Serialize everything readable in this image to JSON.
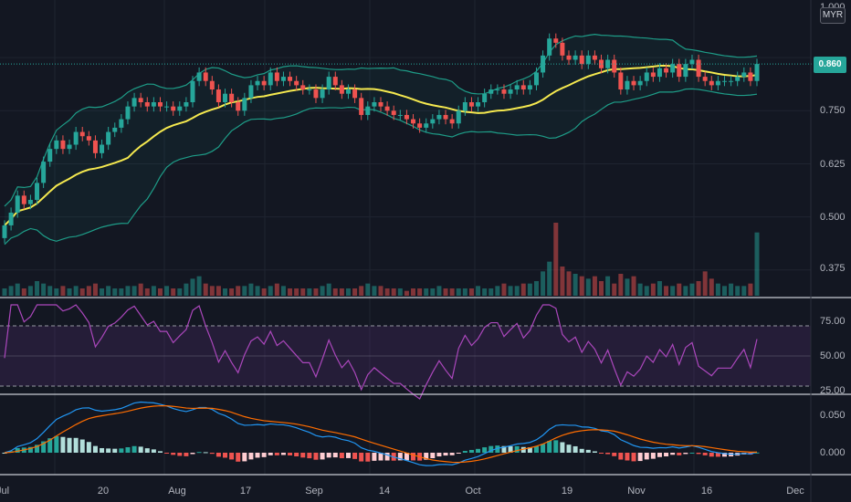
{
  "currency": "MYR",
  "last_price": "0.860",
  "colors": {
    "background": "#131722",
    "grid": "#1f2430",
    "up": "#26a69a",
    "down": "#ef5350",
    "basis": "#f5e94f",
    "bands": "#1e9d88",
    "rsi": "#ab47bc",
    "macd": "#2196f3",
    "signal": "#ff6d00"
  },
  "chart_data": [
    {
      "type": "candlestick",
      "overlays": [
        "bollinger-bands",
        "volume"
      ],
      "y_ticks": [
        "1.000",
        "0.860",
        "0.750",
        "0.625",
        "0.500",
        "0.375"
      ],
      "ylim": [
        0.31,
        1.0
      ],
      "x_ticks": [
        "Jul",
        "20",
        "Aug",
        "17",
        "Sep",
        "14",
        "Oct",
        "19",
        "Nov",
        "16",
        "Dec"
      ],
      "close": [
        0.48,
        0.51,
        0.55,
        0.53,
        0.54,
        0.58,
        0.63,
        0.66,
        0.68,
        0.66,
        0.67,
        0.7,
        0.69,
        0.68,
        0.65,
        0.67,
        0.7,
        0.71,
        0.73,
        0.76,
        0.78,
        0.77,
        0.76,
        0.77,
        0.76,
        0.76,
        0.75,
        0.76,
        0.77,
        0.82,
        0.84,
        0.82,
        0.8,
        0.77,
        0.79,
        0.77,
        0.75,
        0.78,
        0.81,
        0.82,
        0.81,
        0.84,
        0.82,
        0.83,
        0.82,
        0.81,
        0.8,
        0.8,
        0.78,
        0.8,
        0.83,
        0.81,
        0.79,
        0.8,
        0.78,
        0.74,
        0.76,
        0.77,
        0.76,
        0.75,
        0.74,
        0.74,
        0.73,
        0.72,
        0.71,
        0.72,
        0.73,
        0.74,
        0.73,
        0.72,
        0.75,
        0.77,
        0.76,
        0.77,
        0.79,
        0.8,
        0.8,
        0.79,
        0.8,
        0.81,
        0.8,
        0.81,
        0.84,
        0.88,
        0.92,
        0.91,
        0.88,
        0.87,
        0.88,
        0.86,
        0.88,
        0.87,
        0.85,
        0.87,
        0.84,
        0.8,
        0.82,
        0.81,
        0.82,
        0.84,
        0.83,
        0.85,
        0.84,
        0.86,
        0.83,
        0.86,
        0.87,
        0.83,
        0.82,
        0.81,
        0.82,
        0.82,
        0.82,
        0.83,
        0.84,
        0.82,
        0.86
      ],
      "volume": [
        3,
        4,
        5,
        3,
        4,
        6,
        5,
        4,
        3,
        4,
        3,
        4,
        3,
        4,
        5,
        3,
        4,
        3,
        3,
        4,
        4,
        5,
        3,
        4,
        3,
        4,
        3,
        3,
        5,
        7,
        8,
        5,
        4,
        4,
        3,
        3,
        4,
        4,
        5,
        4,
        3,
        4,
        5,
        4,
        3,
        3,
        3,
        3,
        3,
        4,
        5,
        3,
        3,
        3,
        3,
        4,
        5,
        4,
        4,
        3,
        3,
        3,
        2,
        3,
        3,
        3,
        3,
        4,
        3,
        3,
        3,
        3,
        3,
        4,
        3,
        3,
        4,
        5,
        4,
        4,
        5,
        5,
        6,
        10,
        14,
        30,
        12,
        10,
        9,
        8,
        7,
        8,
        6,
        8,
        5,
        9,
        7,
        8,
        5,
        4,
        5,
        6,
        4,
        4,
        5,
        4,
        5,
        6,
        10,
        7,
        5,
        4,
        5,
        4,
        4,
        5,
        26
      ],
      "rsi": {
        "ticks": [
          "75.00",
          "50.00",
          "25.00"
        ],
        "ylim": [
          25,
          85
        ],
        "upper": 70,
        "lower": 30
      },
      "macd": {
        "ticks": [
          "0.050",
          "0.000"
        ]
      }
    }
  ]
}
